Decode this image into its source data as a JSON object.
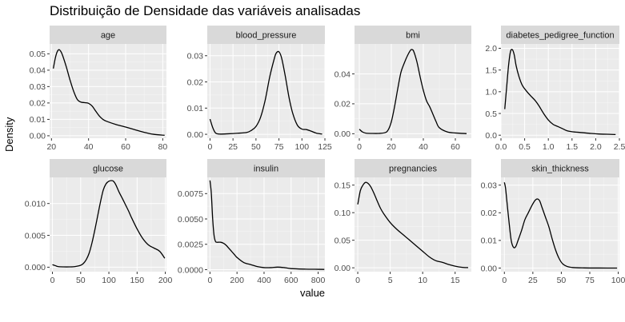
{
  "chart_data": {
    "type": "line",
    "title": "Distribuição de Densidade das variáveis analisadas",
    "xlabel": "value",
    "ylabel": "Density",
    "facet_layout": "2 rows x 4 columns",
    "colors": {
      "panel_bg": "#ebebeb",
      "strip_bg": "#d9d9d9",
      "grid_major": "#ffffff",
      "line": "#000000"
    },
    "panels": [
      {
        "name": "age",
        "xlim": [
          19,
          82
        ],
        "ylim": [
          -0.0015,
          0.056
        ],
        "x_ticks": [
          20,
          40,
          60,
          80
        ],
        "x_tick_labels": [
          "20",
          "40",
          "60",
          "80"
        ],
        "y_ticks": [
          0,
          0.01,
          0.02,
          0.03,
          0.04,
          0.05
        ],
        "y_tick_labels": [
          "0.00",
          "0.01",
          "0.02",
          "0.03",
          "0.04",
          "0.05"
        ],
        "x": [
          21,
          22,
          23,
          24,
          25,
          26,
          28,
          30,
          32,
          34,
          36,
          38,
          40,
          42,
          44,
          46,
          48,
          50,
          55,
          60,
          65,
          70,
          75,
          81
        ],
        "y": [
          0.041,
          0.047,
          0.051,
          0.0525,
          0.0515,
          0.049,
          0.042,
          0.034,
          0.027,
          0.022,
          0.0205,
          0.0202,
          0.0198,
          0.018,
          0.0148,
          0.0118,
          0.0098,
          0.0087,
          0.0068,
          0.0053,
          0.0037,
          0.0021,
          0.0009,
          0.0003
        ]
      },
      {
        "name": "blood_pressure",
        "xlim": [
          -3,
          125
        ],
        "ylim": [
          -0.0015,
          0.0345
        ],
        "x_ticks": [
          0,
          25,
          50,
          75,
          100,
          125
        ],
        "x_tick_labels": [
          "0",
          "25",
          "50",
          "75",
          "100",
          "125"
        ],
        "y_ticks": [
          0,
          0.01,
          0.02,
          0.03
        ],
        "y_tick_labels": [
          "0.00",
          "0.01",
          "0.02",
          "0.03"
        ],
        "x": [
          0,
          3,
          6,
          10,
          20,
          30,
          40,
          45,
          50,
          55,
          60,
          65,
          70,
          72,
          75,
          78,
          82,
          86,
          90,
          95,
          100,
          105,
          110,
          116,
          122
        ],
        "y": [
          0.0058,
          0.0025,
          0.0005,
          0.0001,
          0.0002,
          0.0004,
          0.0007,
          0.0015,
          0.003,
          0.0065,
          0.013,
          0.022,
          0.029,
          0.031,
          0.0315,
          0.029,
          0.022,
          0.014,
          0.008,
          0.0035,
          0.002,
          0.0018,
          0.0012,
          0.0004,
          0.0001
        ]
      },
      {
        "name": "bmi",
        "xlim": [
          -3,
          70
        ],
        "ylim": [
          -0.003,
          0.06
        ],
        "x_ticks": [
          0,
          20,
          40,
          60
        ],
        "x_tick_labels": [
          "0",
          "20",
          "40",
          "60"
        ],
        "y_ticks": [
          0,
          0.02,
          0.04
        ],
        "y_tick_labels": [
          "0.00",
          "0.02",
          "0.04"
        ],
        "x": [
          0,
          2,
          4,
          8,
          12,
          16,
          18,
          20,
          22,
          24,
          26,
          28,
          30,
          32,
          33,
          34,
          36,
          38,
          40,
          42,
          44,
          46,
          48,
          50,
          55,
          60,
          67
        ],
        "y": [
          0.003,
          0.0012,
          0.0004,
          0.0002,
          0.0002,
          0.0007,
          0.0025,
          0.008,
          0.018,
          0.03,
          0.041,
          0.047,
          0.052,
          0.0558,
          0.0562,
          0.055,
          0.048,
          0.038,
          0.029,
          0.022,
          0.018,
          0.013,
          0.008,
          0.004,
          0.0012,
          0.0005,
          0.0001
        ]
      },
      {
        "name": "diabetes_pedigree_function",
        "xlim": [
          0,
          2.5
        ],
        "ylim": [
          -0.07,
          2.1
        ],
        "x_ticks": [
          0,
          0.5,
          1,
          1.5,
          2,
          2.5
        ],
        "x_tick_labels": [
          "0.0",
          "0.5",
          "1.0",
          "1.5",
          "2.0",
          "2.5"
        ],
        "y_ticks": [
          0,
          0.5,
          1,
          1.5,
          2
        ],
        "y_tick_labels": [
          "0.0",
          "0.5",
          "1.0",
          "1.5",
          "2.0"
        ],
        "x": [
          0.08,
          0.12,
          0.16,
          0.2,
          0.24,
          0.28,
          0.32,
          0.38,
          0.45,
          0.55,
          0.65,
          0.72,
          0.8,
          0.9,
          1.0,
          1.1,
          1.2,
          1.3,
          1.4,
          1.5,
          1.7,
          1.9,
          2.1,
          2.3,
          2.42
        ],
        "y": [
          0.6,
          1.1,
          1.6,
          1.92,
          1.97,
          1.85,
          1.6,
          1.35,
          1.15,
          1.0,
          0.88,
          0.8,
          0.68,
          0.5,
          0.35,
          0.25,
          0.2,
          0.15,
          0.1,
          0.08,
          0.06,
          0.04,
          0.025,
          0.02,
          0.015
        ]
      },
      {
        "name": "glucose",
        "xlim": [
          -5,
          202
        ],
        "ylim": [
          -0.0007,
          0.0141
        ],
        "x_ticks": [
          0,
          50,
          100,
          150,
          200
        ],
        "x_tick_labels": [
          "0",
          "50",
          "100",
          "150",
          "200"
        ],
        "y_ticks": [
          0,
          0.005,
          0.01
        ],
        "y_tick_labels": [
          "0.000",
          "0.005",
          "0.010"
        ],
        "x": [
          0,
          5,
          10,
          20,
          30,
          40,
          50,
          55,
          60,
          65,
          70,
          75,
          80,
          85,
          90,
          95,
          100,
          105,
          108,
          112,
          118,
          125,
          130,
          135,
          140,
          150,
          160,
          170,
          180,
          190,
          199
        ],
        "y": [
          0.0004,
          0.00025,
          0.0001,
          5e-05,
          5e-05,
          0.0001,
          0.0003,
          0.0006,
          0.0012,
          0.0022,
          0.0038,
          0.0058,
          0.008,
          0.0102,
          0.0121,
          0.0131,
          0.0135,
          0.0136,
          0.0135,
          0.013,
          0.0118,
          0.0106,
          0.0097,
          0.0088,
          0.0078,
          0.006,
          0.0045,
          0.0035,
          0.003,
          0.0025,
          0.0014
        ]
      },
      {
        "name": "insulin",
        "xlim": [
          -20,
          850
        ],
        "ylim": [
          -0.0002,
          0.0091
        ],
        "x_ticks": [
          0,
          200,
          400,
          600,
          800
        ],
        "x_tick_labels": [
          "0",
          "200",
          "400",
          "600",
          "800"
        ],
        "y_ticks": [
          0,
          0.0025,
          0.005,
          0.0075
        ],
        "y_tick_labels": [
          "0.0000",
          "0.0025",
          "0.0050",
          "0.0075"
        ],
        "x": [
          0,
          10,
          20,
          30,
          40,
          50,
          60,
          80,
          100,
          120,
          140,
          160,
          180,
          200,
          250,
          300,
          350,
          400,
          450,
          500,
          550,
          600,
          700,
          800,
          846
        ],
        "y": [
          0.0088,
          0.0075,
          0.005,
          0.0034,
          0.0028,
          0.0027,
          0.0027,
          0.0027,
          0.0026,
          0.0024,
          0.0021,
          0.0018,
          0.0015,
          0.0012,
          0.0007,
          0.0005,
          0.0003,
          0.0002,
          0.0002,
          0.00025,
          0.0002,
          0.0001,
          5e-05,
          3e-05,
          2e-05
        ]
      },
      {
        "name": "pregnancies",
        "xlim": [
          -0.5,
          17.5
        ],
        "ylim": [
          -0.007,
          0.164
        ],
        "x_ticks": [
          0,
          5,
          10,
          15
        ],
        "x_tick_labels": [
          "0",
          "5",
          "10",
          "15"
        ],
        "y_ticks": [
          0,
          0.05,
          0.1,
          0.15
        ],
        "y_tick_labels": [
          "0.00",
          "0.05",
          "0.10",
          "0.15"
        ],
        "x": [
          0,
          0.4,
          0.8,
          1.2,
          1.6,
          2,
          2.5,
          3,
          3.5,
          4,
          5,
          6,
          7,
          8,
          9,
          10,
          11,
          12,
          13,
          14,
          15,
          16,
          17
        ],
        "y": [
          0.115,
          0.14,
          0.15,
          0.155,
          0.153,
          0.147,
          0.135,
          0.121,
          0.108,
          0.098,
          0.082,
          0.07,
          0.06,
          0.05,
          0.04,
          0.03,
          0.02,
          0.013,
          0.01,
          0.006,
          0.003,
          0.001,
          0.0003
        ]
      },
      {
        "name": "skin_thickness",
        "xlim": [
          -3,
          101
        ],
        "ylim": [
          -0.0013,
          0.0328
        ],
        "x_ticks": [
          0,
          25,
          50,
          75,
          100
        ],
        "x_tick_labels": [
          "0",
          "25",
          "50",
          "75",
          "100"
        ],
        "y_ticks": [
          0,
          0.01,
          0.02,
          0.03
        ],
        "y_tick_labels": [
          "0.00",
          "0.01",
          "0.02",
          "0.03"
        ],
        "x": [
          0,
          1,
          2,
          4,
          6,
          8,
          10,
          12,
          15,
          18,
          21,
          24,
          27,
          29,
          31,
          33,
          36,
          39,
          42,
          45,
          48,
          51,
          55,
          60,
          70,
          80,
          90,
          99
        ],
        "y": [
          0.031,
          0.029,
          0.025,
          0.017,
          0.01,
          0.0075,
          0.0078,
          0.01,
          0.0135,
          0.0175,
          0.02,
          0.0225,
          0.0245,
          0.025,
          0.0243,
          0.022,
          0.0185,
          0.015,
          0.0105,
          0.0065,
          0.0035,
          0.0016,
          0.0006,
          0.0002,
          5e-05,
          2e-05,
          1e-05,
          1e-05
        ]
      }
    ]
  }
}
